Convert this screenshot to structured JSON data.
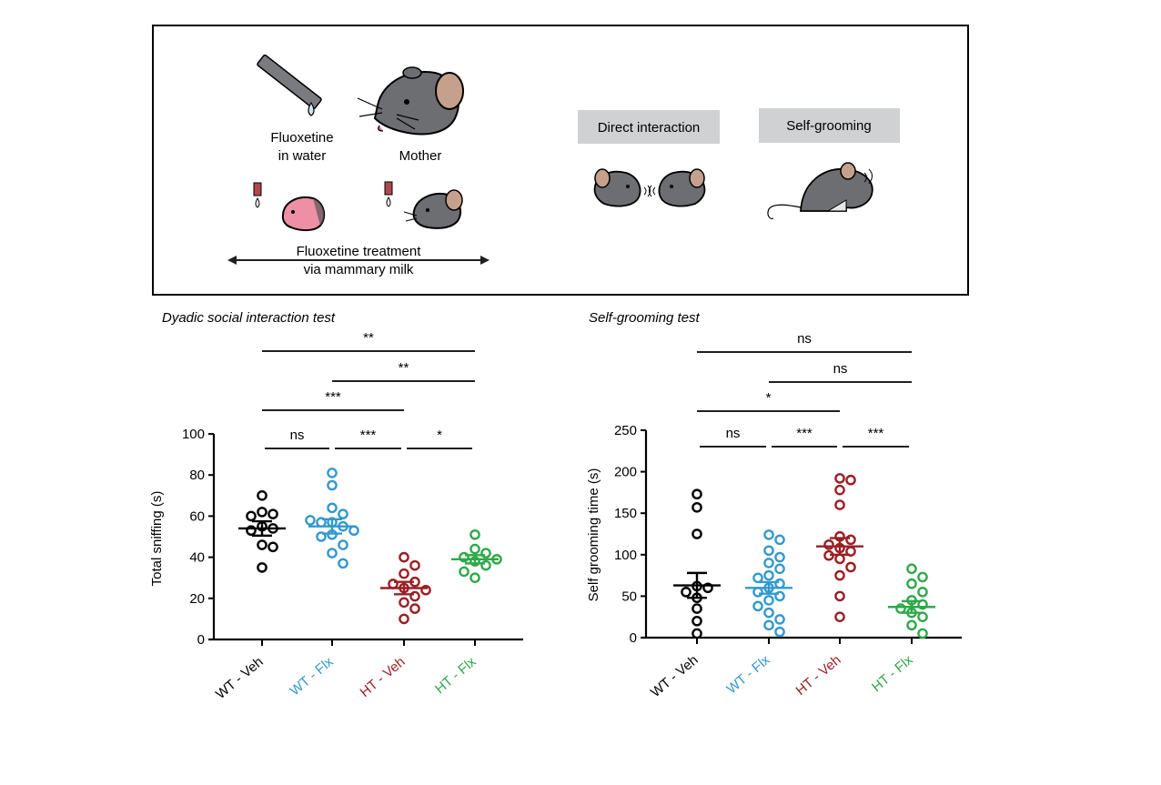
{
  "colors": {
    "wt_veh": "#000000",
    "wt_flx": "#3399cc",
    "ht_veh": "#9a1f24",
    "ht_flx": "#2fa84a",
    "label_box": "#cfd1d2",
    "mouse": "#6d6e71",
    "ear": "#c6a08c",
    "pup": "#ee8fa5"
  },
  "schematic": {
    "fluoxetine_label_line1": "Fluoxetine",
    "fluoxetine_label_line2": "in water",
    "mother_label": "Mother",
    "treatment_line1": "Fluoxetine treatment",
    "treatment_line2": "via mammary milk",
    "box_direct": "Direct interaction",
    "box_grooming": "Self-grooming"
  },
  "chart_data": [
    {
      "type": "scatter",
      "title": "Dyadic social interaction test",
      "ylabel": "Total sniffing (s)",
      "xlabel": "",
      "ylim": [
        0,
        100
      ],
      "yticks": [
        0,
        20,
        40,
        60,
        80,
        100
      ],
      "categories": [
        "WT - Veh",
        "WT - Flx",
        "HT - Veh",
        "HT - Flx"
      ],
      "series": [
        {
          "name": "WT - Veh",
          "color_key": "wt_veh",
          "mean": 54,
          "sem": 3.5,
          "points": [
            70,
            62,
            61,
            60,
            55,
            54,
            53,
            46,
            45,
            35
          ]
        },
        {
          "name": "WT - Flx",
          "color_key": "wt_flx",
          "mean": 55,
          "sem": 3.5,
          "points": [
            81,
            75,
            64,
            61,
            57,
            57,
            55,
            53,
            51,
            50,
            46,
            42,
            37,
            58
          ]
        },
        {
          "name": "HT - Veh",
          "color_key": "ht_veh",
          "mean": 25,
          "sem": 3,
          "points": [
            40,
            36,
            32,
            28,
            27,
            25,
            24,
            21,
            18,
            15,
            10
          ]
        },
        {
          "name": "HT - Flx",
          "color_key": "ht_flx",
          "mean": 39,
          "sem": 2,
          "points": [
            51,
            44,
            42,
            40,
            39,
            38,
            36,
            33,
            30
          ]
        }
      ],
      "significance": [
        {
          "from": 0,
          "to": 3,
          "label": "**"
        },
        {
          "from": 1,
          "to": 3,
          "label": "**"
        },
        {
          "from": 0,
          "to": 2,
          "label": "***"
        },
        {
          "from": 0,
          "to": 1,
          "label": "ns"
        },
        {
          "from": 1,
          "to": 2,
          "label": "***"
        },
        {
          "from": 2,
          "to": 3,
          "label": "*"
        }
      ]
    },
    {
      "type": "scatter",
      "title": "Self-grooming test",
      "ylabel": "Self grooming time (s)",
      "xlabel": "",
      "ylim": [
        0,
        250
      ],
      "yticks": [
        0,
        50,
        100,
        150,
        200,
        250
      ],
      "categories": [
        "WT - Veh",
        "WT - Flx",
        "HT - Veh",
        "HT - Flx"
      ],
      "series": [
        {
          "name": "WT - Veh",
          "color_key": "wt_veh",
          "mean": 63,
          "sem": 15,
          "points": [
            173,
            157,
            125,
            62,
            60,
            55,
            48,
            35,
            20,
            5
          ]
        },
        {
          "name": "WT - Flx",
          "color_key": "wt_flx",
          "mean": 60,
          "sem": 7,
          "points": [
            124,
            118,
            105,
            97,
            90,
            83,
            75,
            72,
            65,
            60,
            55,
            50,
            45,
            38,
            30,
            22,
            15,
            7
          ]
        },
        {
          "name": "HT - Veh",
          "color_key": "ht_veh",
          "mean": 110,
          "sem": 10,
          "points": [
            192,
            190,
            178,
            160,
            122,
            118,
            112,
            108,
            104,
            99,
            95,
            85,
            75,
            50,
            25
          ]
        },
        {
          "name": "HT - Flx",
          "color_key": "ht_flx",
          "mean": 37,
          "sem": 7,
          "points": [
            83,
            73,
            65,
            55,
            45,
            40,
            35,
            30,
            25,
            15,
            5
          ]
        }
      ],
      "significance": [
        {
          "from": 0,
          "to": 3,
          "label": "ns"
        },
        {
          "from": 1,
          "to": 3,
          "label": "ns"
        },
        {
          "from": 0,
          "to": 2,
          "label": "*"
        },
        {
          "from": 0,
          "to": 1,
          "label": "ns"
        },
        {
          "from": 1,
          "to": 2,
          "label": "***"
        },
        {
          "from": 2,
          "to": 3,
          "label": "***"
        }
      ]
    }
  ]
}
